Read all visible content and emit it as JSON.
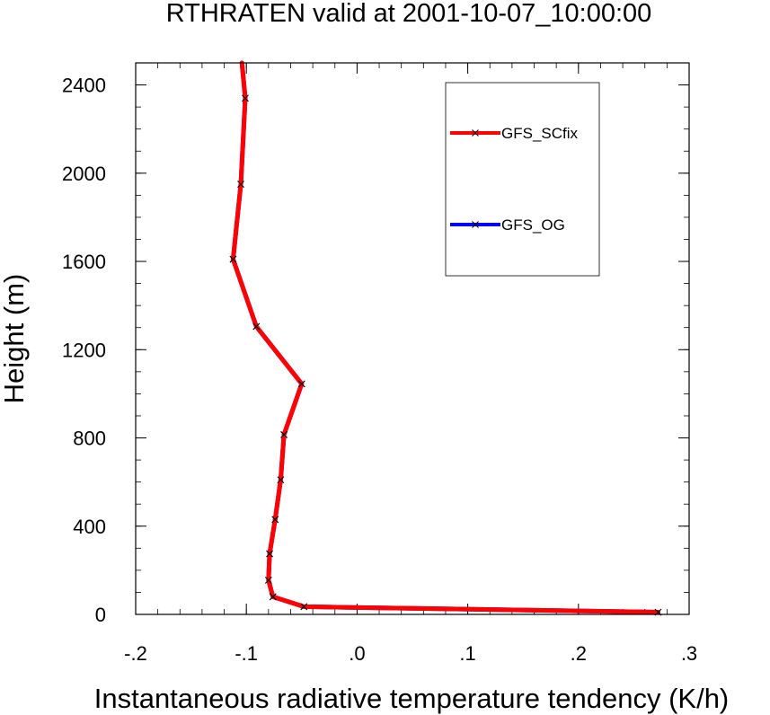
{
  "chart_data": {
    "type": "line",
    "title": "RTHRATEN valid at 2001-10-07_10:00:00",
    "xlabel": "Instantaneous radiative temperature tendency (K/h)",
    "ylabel": "Height (m)",
    "xlim": [
      -0.2,
      0.3
    ],
    "ylim": [
      0,
      2500
    ],
    "xticks": [
      -0.2,
      -0.1,
      0.0,
      0.1,
      0.2,
      0.3
    ],
    "xtick_labels": [
      "-.2",
      "-.1",
      ".0",
      ".1",
      ".2",
      ".3"
    ],
    "yticks": [
      0,
      400,
      800,
      1200,
      1600,
      2000,
      2400
    ],
    "ytick_labels": [
      "0",
      "400",
      "800",
      "1200",
      "1600",
      "2000",
      "2400"
    ],
    "grid": false,
    "legend_position": "top-right",
    "series": [
      {
        "name": "GFS_OG",
        "color": "#0000ff",
        "marker": "x",
        "x": [
          0.272,
          -0.048,
          -0.076,
          -0.08,
          -0.079,
          -0.074,
          -0.069,
          -0.066,
          -0.05,
          -0.091,
          -0.112,
          -0.105,
          -0.101,
          -0.104
        ],
        "y": [
          10,
          35,
          80,
          155,
          275,
          430,
          610,
          815,
          1045,
          1305,
          1610,
          1950,
          2340,
          2500
        ]
      },
      {
        "name": "GFS_SCfix",
        "color": "#ff0000",
        "marker": "x",
        "x": [
          0.272,
          -0.048,
          -0.076,
          -0.08,
          -0.079,
          -0.074,
          -0.069,
          -0.066,
          -0.05,
          -0.091,
          -0.112,
          -0.105,
          -0.101,
          -0.104
        ],
        "y": [
          10,
          35,
          80,
          155,
          275,
          430,
          610,
          815,
          1045,
          1305,
          1610,
          1950,
          2340,
          2500
        ]
      }
    ],
    "legend_order": [
      "GFS_SCfix",
      "GFS_OG"
    ]
  }
}
